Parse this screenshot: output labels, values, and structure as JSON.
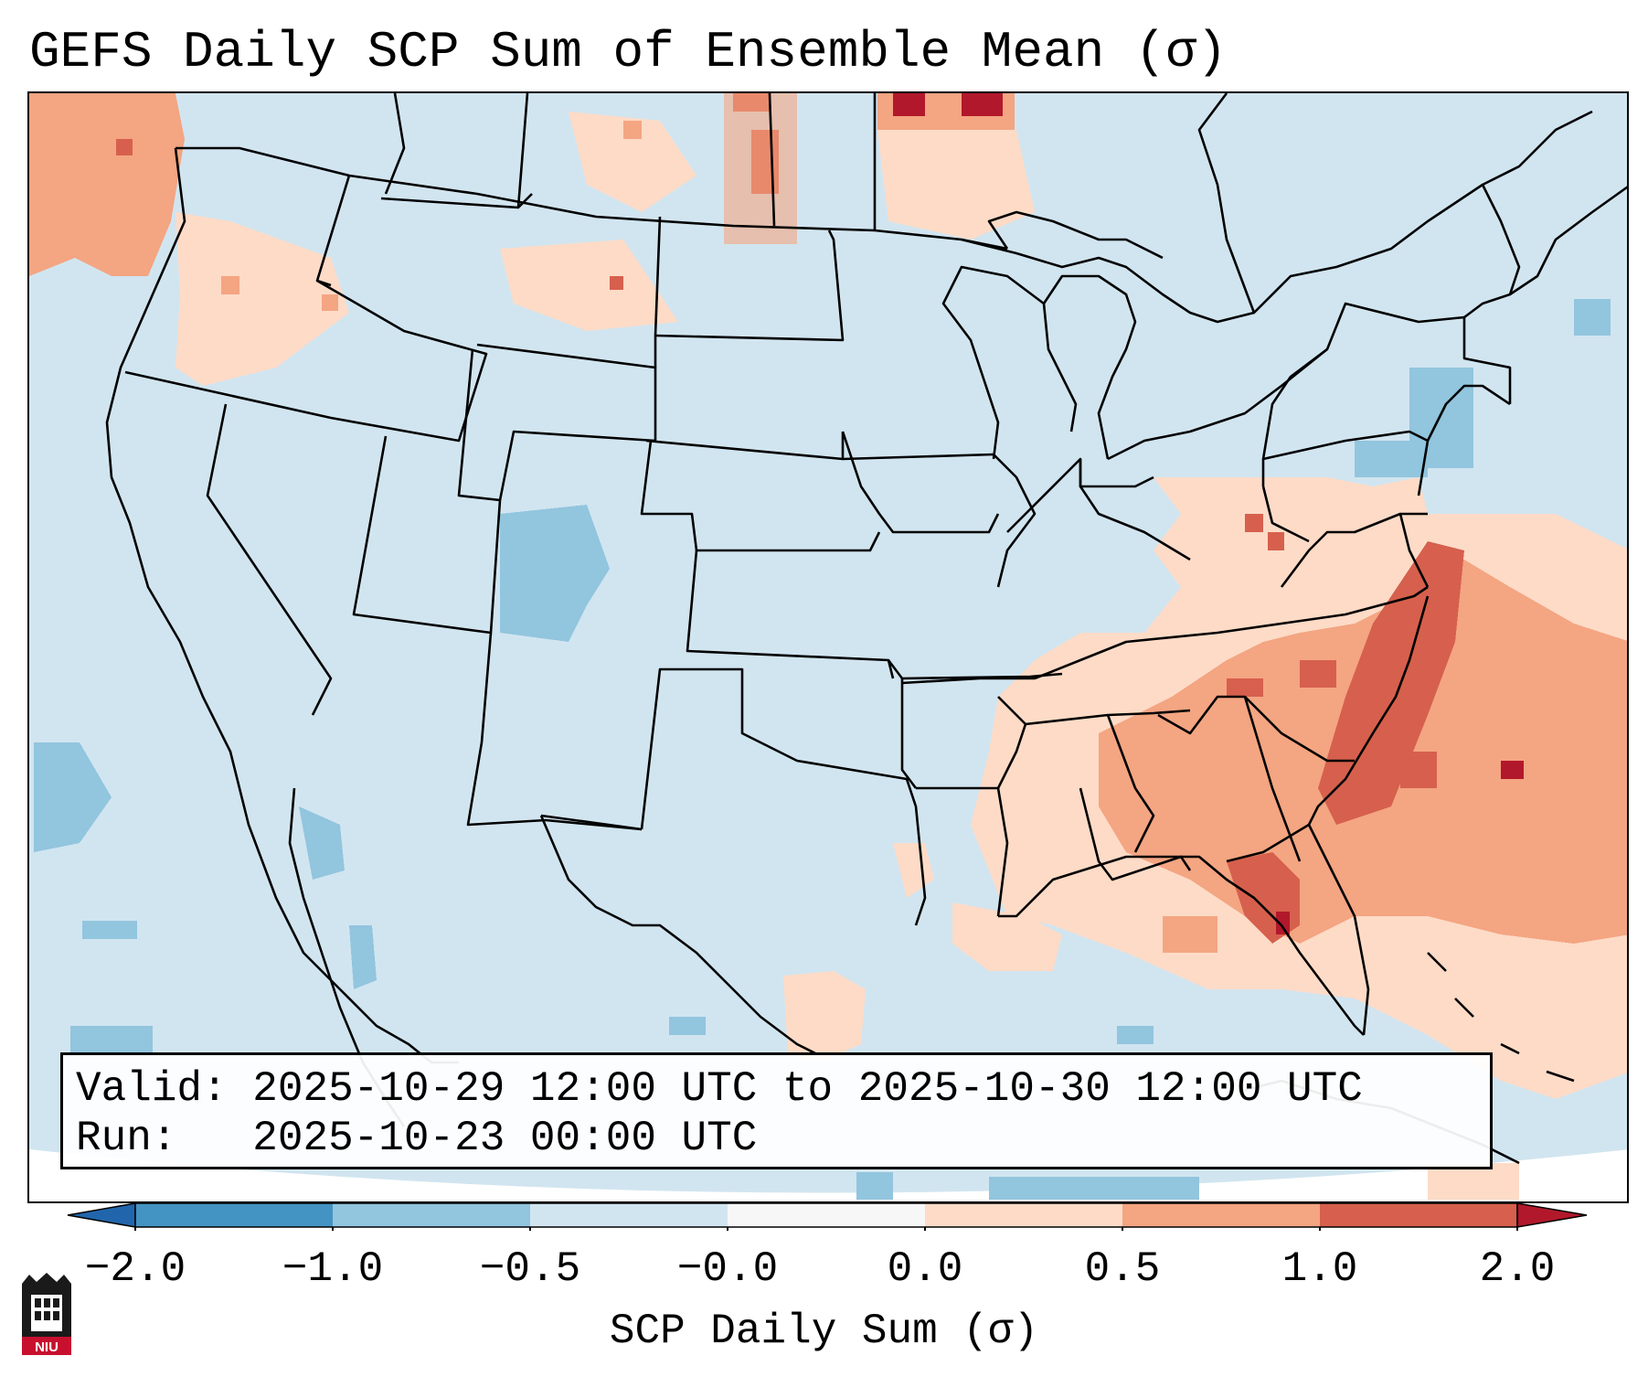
{
  "title": "GEFS Daily SCP Sum of Ensemble Mean (σ)",
  "info": {
    "valid_label": "Valid:",
    "valid_value": "2025-10-29 12:00 UTC to 2025-10-30 12:00 UTC",
    "run_label": "Run:",
    "run_value": "2025-10-23 00:00 UTC"
  },
  "colorbar": {
    "label": "SCP Daily Sum (σ)",
    "ticks": [
      "−2.0",
      "−1.0",
      "−0.5",
      "−0.0",
      "0.0",
      "0.5",
      "1.0",
      "2.0"
    ],
    "bins": [
      {
        "range": "< -2.0",
        "color": "#2166ac"
      },
      {
        "range": "-2.0 to -1.0",
        "color": "#4393c3"
      },
      {
        "range": "-1.0 to -0.5",
        "color": "#92c5de"
      },
      {
        "range": "-0.5 to -0.0",
        "color": "#d1e5f0"
      },
      {
        "range": "-0.0 to 0.0",
        "color": "#f7f7f7"
      },
      {
        "range": "0.0 to 0.5",
        "color": "#fddbc7"
      },
      {
        "range": "0.5 to 1.0",
        "color": "#f4a582"
      },
      {
        "range": "1.0 to 2.0",
        "color": "#d6604d"
      },
      {
        "range": "> 2.0",
        "color": "#b2182b"
      }
    ]
  },
  "map": {
    "projection": "Lambert Conformal, CONUS",
    "features": [
      "US state boundaries",
      "Coastlines",
      "Canada provinces",
      "Mexico",
      "Cuba",
      "Bahamas"
    ]
  },
  "logo": {
    "name": "NIU",
    "text": "NIU"
  }
}
